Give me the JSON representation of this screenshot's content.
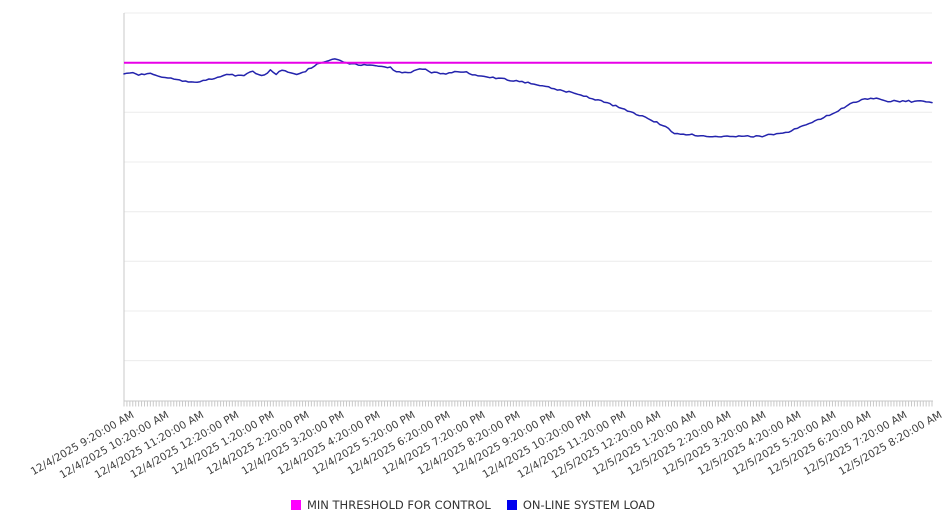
{
  "chart_data": {
    "type": "line",
    "title": "",
    "x_axis": {
      "labels": [
        "12/4/2025 9:20:00 AM",
        "12/4/2025 10:20:00 AM",
        "12/4/2025 11:20:00 AM",
        "12/4/2025 12:20:00 PM",
        "12/4/2025 1:20:00 PM",
        "12/4/2025 2:20:00 PM",
        "12/4/2025 3:20:00 PM",
        "12/4/2025 4:20:00 PM",
        "12/4/2025 5:20:00 PM",
        "12/4/2025 6:20:00 PM",
        "12/4/2025 7:20:00 PM",
        "12/4/2025 8:20:00 PM",
        "12/4/2025 9:20:00 PM",
        "12/4/2025 10:20:00 PM",
        "12/4/2025 11:20:00 PM",
        "12/5/2025 12:20:00 AM",
        "12/5/2025 1:20:00 AM",
        "12/5/2025 2:20:00 AM",
        "12/5/2025 3:20:00 AM",
        "12/5/2025 4:20:00 AM",
        "12/5/2025 5:20:00 AM",
        "12/5/2025 6:20:00 AM",
        "12/5/2025 7:20:00 AM",
        "12/5/2025 8:20:00 AM"
      ],
      "label_rotation_deg": -30,
      "minor_tick_count": 277
    },
    "y_axis": {
      "labels_visible": false,
      "range": [
        0,
        100
      ],
      "unit": "percent of plot height (no numeric labels shown in chart)",
      "gridline_values": [
        100,
        87.2,
        74.4,
        61.6,
        48.8,
        36.0,
        23.2,
        10.4
      ],
      "grid_on": true
    },
    "series": [
      {
        "name": "MIN THRESHOLD FOR CONTROL",
        "kind": "constant",
        "value": 87.2,
        "color": "#e800e8"
      },
      {
        "name": "ON-LINE SYSTEM LOAD",
        "kind": "line",
        "color": "#2424ad",
        "points": [
          [
            0.0,
            84.5
          ],
          [
            0.01,
            84.8
          ],
          [
            0.02,
            84.0
          ],
          [
            0.03,
            84.5
          ],
          [
            0.04,
            83.8
          ],
          [
            0.05,
            83.4
          ],
          [
            0.059,
            83.0
          ],
          [
            0.069,
            82.6
          ],
          [
            0.079,
            82.3
          ],
          [
            0.089,
            82.2
          ],
          [
            0.099,
            82.5
          ],
          [
            0.109,
            83.0
          ],
          [
            0.119,
            83.5
          ],
          [
            0.129,
            84.3
          ],
          [
            0.139,
            83.8
          ],
          [
            0.149,
            84.0
          ],
          [
            0.158,
            85.1
          ],
          [
            0.166,
            84.1
          ],
          [
            0.173,
            83.8
          ],
          [
            0.181,
            85.3
          ],
          [
            0.188,
            84.3
          ],
          [
            0.196,
            85.3
          ],
          [
            0.205,
            84.5
          ],
          [
            0.215,
            84.3
          ],
          [
            0.225,
            85.1
          ],
          [
            0.233,
            86.1
          ],
          [
            0.24,
            86.9
          ],
          [
            0.248,
            87.4
          ],
          [
            0.255,
            87.9
          ],
          [
            0.262,
            88.3
          ],
          [
            0.267,
            87.9
          ],
          [
            0.272,
            87.4
          ],
          [
            0.28,
            87.0
          ],
          [
            0.29,
            86.7
          ],
          [
            0.3,
            86.6
          ],
          [
            0.309,
            86.6
          ],
          [
            0.319,
            86.3
          ],
          [
            0.329,
            86.0
          ],
          [
            0.339,
            84.8
          ],
          [
            0.347,
            84.5
          ],
          [
            0.354,
            84.7
          ],
          [
            0.361,
            85.1
          ],
          [
            0.369,
            85.7
          ],
          [
            0.374,
            85.3
          ],
          [
            0.381,
            84.7
          ],
          [
            0.391,
            84.5
          ],
          [
            0.401,
            84.4
          ],
          [
            0.408,
            84.9
          ],
          [
            0.416,
            84.7
          ],
          [
            0.423,
            84.8
          ],
          [
            0.433,
            84.1
          ],
          [
            0.443,
            83.9
          ],
          [
            0.453,
            83.5
          ],
          [
            0.463,
            83.2
          ],
          [
            0.473,
            82.9
          ],
          [
            0.483,
            82.5
          ],
          [
            0.493,
            82.2
          ],
          [
            0.502,
            82.0
          ],
          [
            0.512,
            81.6
          ],
          [
            0.522,
            81.1
          ],
          [
            0.532,
            80.5
          ],
          [
            0.542,
            80.0
          ],
          [
            0.552,
            79.6
          ],
          [
            0.562,
            79.1
          ],
          [
            0.572,
            78.5
          ],
          [
            0.582,
            77.8
          ],
          [
            0.592,
            77.3
          ],
          [
            0.601,
            76.5
          ],
          [
            0.611,
            75.9
          ],
          [
            0.621,
            75.0
          ],
          [
            0.631,
            74.2
          ],
          [
            0.641,
            73.5
          ],
          [
            0.651,
            72.6
          ],
          [
            0.661,
            71.6
          ],
          [
            0.671,
            70.6
          ],
          [
            0.681,
            69.1
          ],
          [
            0.69,
            68.6
          ],
          [
            0.7,
            68.8
          ],
          [
            0.71,
            68.3
          ],
          [
            0.72,
            68.3
          ],
          [
            0.73,
            68.2
          ],
          [
            0.74,
            68.0
          ],
          [
            0.75,
            68.2
          ],
          [
            0.76,
            68.3
          ],
          [
            0.77,
            68.2
          ],
          [
            0.78,
            68.2
          ],
          [
            0.79,
            68.3
          ],
          [
            0.799,
            68.6
          ],
          [
            0.809,
            68.8
          ],
          [
            0.819,
            69.1
          ],
          [
            0.829,
            70.0
          ],
          [
            0.839,
            70.9
          ],
          [
            0.849,
            71.6
          ],
          [
            0.859,
            72.4
          ],
          [
            0.869,
            73.5
          ],
          [
            0.879,
            74.2
          ],
          [
            0.889,
            75.4
          ],
          [
            0.898,
            76.4
          ],
          [
            0.908,
            77.3
          ],
          [
            0.916,
            77.7
          ],
          [
            0.923,
            78.0
          ],
          [
            0.931,
            78.1
          ],
          [
            0.938,
            77.7
          ],
          [
            0.945,
            77.2
          ],
          [
            0.953,
            77.4
          ],
          [
            0.96,
            77.2
          ],
          [
            0.968,
            77.4
          ],
          [
            0.975,
            77.2
          ],
          [
            0.983,
            77.3
          ],
          [
            0.99,
            77.2
          ],
          [
            1.0,
            76.9
          ]
        ]
      }
    ],
    "legend": {
      "position": "bottom-center",
      "items": [
        {
          "label": "MIN THRESHOLD FOR CONTROL",
          "color": "#ff00ff"
        },
        {
          "label": "ON-LINE SYSTEM LOAD",
          "color": "#0000ee"
        }
      ]
    },
    "colors": {
      "axis": "#c9c9c9",
      "gridline": "#ececec",
      "tick": "#c9c9c9",
      "label_text": "#3f3f3f"
    }
  }
}
